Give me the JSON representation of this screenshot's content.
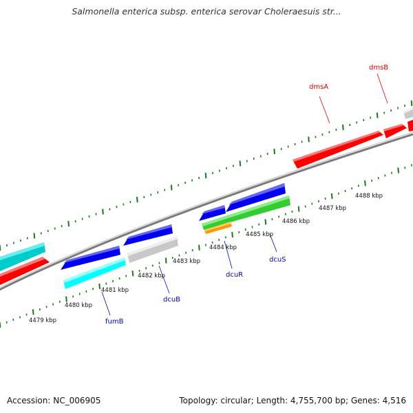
{
  "title": "Salmonella enterica subsp. enterica serovar Choleraesuis str...",
  "footer": {
    "accession": "Accession: NC_006905",
    "summary": "Topology: circular; Length: 4,755,700 bp; Genes: 4,516"
  },
  "scale_labels": [
    "4479 kbp",
    "4480 kbp",
    "4481 kbp",
    "4482 kbp",
    "4483 kbp",
    "4484 kbp",
    "4485 kbp",
    "4486 kbp",
    "4487 kbp",
    "4488 kbp"
  ],
  "gene_labels": [
    {
      "name": "dmsA",
      "color": "#e00000"
    },
    {
      "name": "dmsB",
      "color": "#e00000"
    },
    {
      "name": "dcuS",
      "color": "#0000cc"
    },
    {
      "name": "dcuR",
      "color": "#0000cc"
    },
    {
      "name": "dcuB",
      "color": "#0000cc"
    },
    {
      "name": "fumB",
      "color": "#0000cc"
    }
  ],
  "colors": {
    "forward_strand": "#ff0000",
    "reverse_strand": "#0000ee",
    "cyan_gene": "#00ffff",
    "teal_gene": "#00cccc",
    "green_gene": "#33cc33",
    "orange_gene": "#ff9900",
    "gray_gene": "#c8c8c8",
    "backbone": "#888888",
    "tick": "#1a7a1a"
  }
}
